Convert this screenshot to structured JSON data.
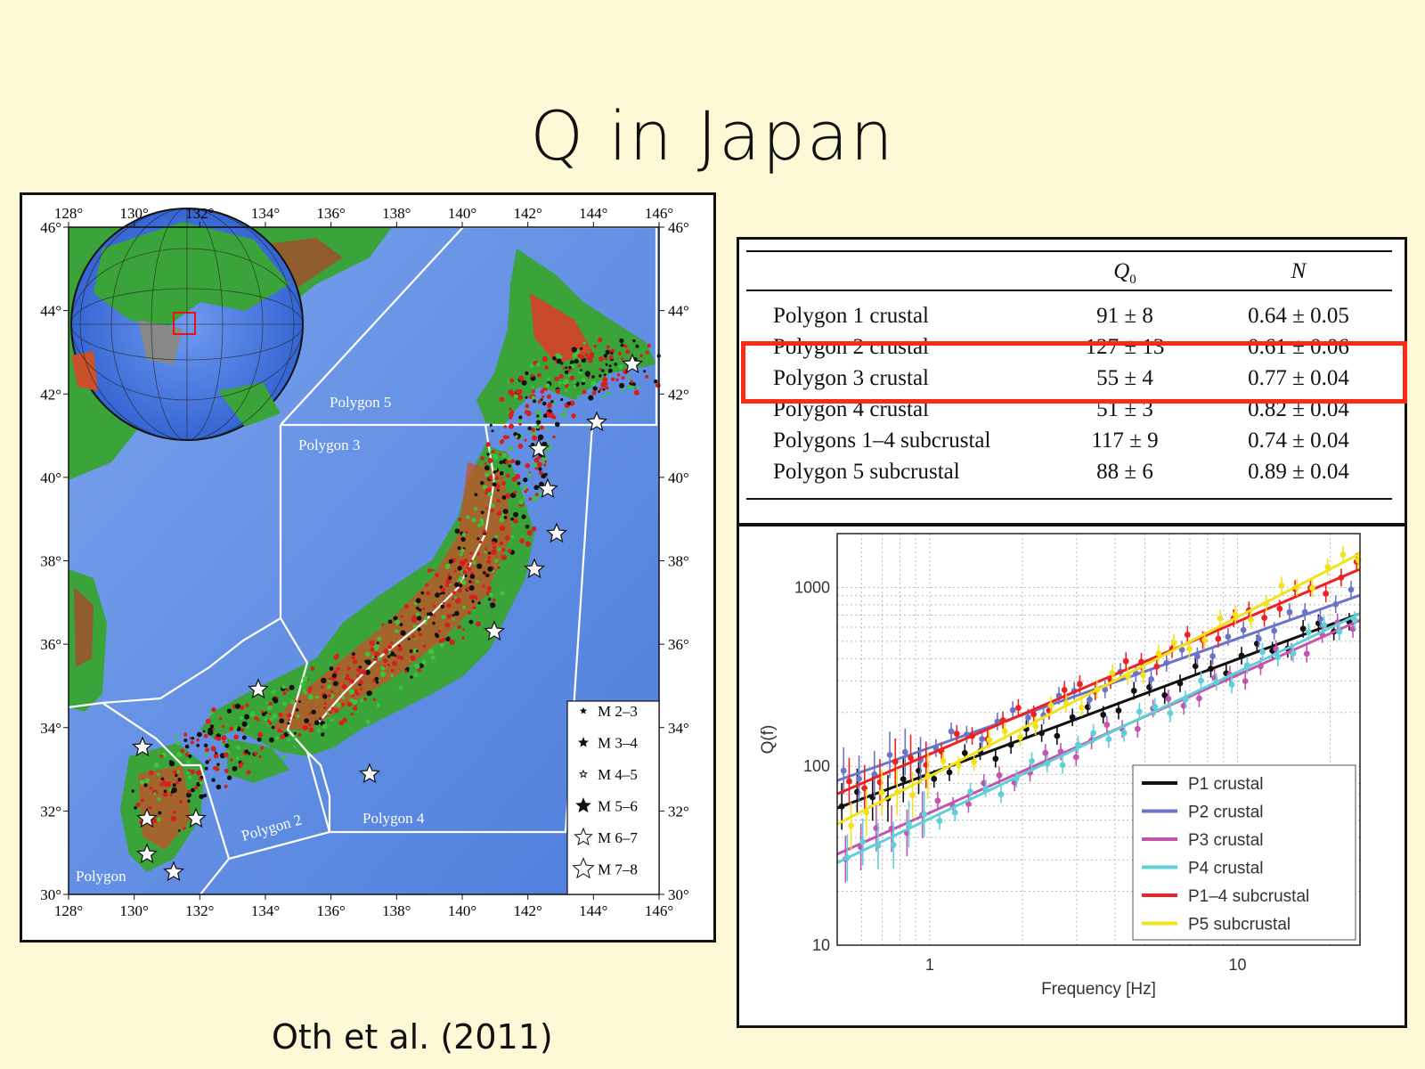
{
  "slide": {
    "title": "Q in Japan",
    "citation": "Oth et al. (2011)"
  },
  "map": {
    "lon_ticks": [
      "128°",
      "130°",
      "132°",
      "134°",
      "136°",
      "138°",
      "140°",
      "142°",
      "144°",
      "146°"
    ],
    "lat_ticks": [
      "46°",
      "44°",
      "42°",
      "40°",
      "38°",
      "36°",
      "34°",
      "32°",
      "30°"
    ],
    "polygon_labels": [
      "Polygon 5",
      "Polygon 3",
      "Polygon 2",
      "Polygon 4",
      "Polygon"
    ],
    "legend": [
      "M 2–3",
      "M 3–4",
      "M 4–5",
      "M 5–6",
      "M 6–7",
      "M 7–8"
    ],
    "colors": {
      "sea": "#5b86e0",
      "land_low": "#39a83a",
      "land_mid": "#e2c93a",
      "land_high": "#a93a22",
      "polygon_line": "#ffffff"
    }
  },
  "table": {
    "headers": [
      "",
      "Q0",
      "N"
    ],
    "rows": [
      {
        "label": "Polygon 1 crustal",
        "q0": "91 ± 8",
        "n": "0.64 ± 0.05"
      },
      {
        "label": "Polygon 2 crustal",
        "q0": "127 ± 13",
        "n": "0.61 ± 0.06"
      },
      {
        "label": "Polygon 3 crustal",
        "q0": "55 ± 4",
        "n": "0.77 ± 0.04"
      },
      {
        "label": "Polygon 4 crustal",
        "q0": "51 ± 3",
        "n": "0.82 ± 0.04"
      },
      {
        "label": "Polygons 1–4 subcrustal",
        "q0": "117 ± 9",
        "n": "0.74 ± 0.04"
      },
      {
        "label": "Polygon 5 subcrustal",
        "q0": "88 ± 6",
        "n": "0.89 ± 0.04"
      }
    ],
    "highlight_color": "#ff2a14"
  },
  "chart_data": {
    "type": "line",
    "xlabel": "Frequency [Hz]",
    "ylabel": "Q(f)",
    "xscale": "log",
    "yscale": "log",
    "xlim": [
      0.5,
      25
    ],
    "ylim": [
      10,
      2000
    ],
    "x_ticks": [
      "1",
      "10"
    ],
    "y_ticks": [
      "10",
      "100",
      "1000"
    ],
    "grid": true,
    "legend_position": "bottom-right",
    "series": [
      {
        "name": "P1 crustal",
        "color": "#111111",
        "q0": 91,
        "n": 0.64
      },
      {
        "name": "P2 crustal",
        "color": "#6b74c6",
        "q0": 127,
        "n": 0.61
      },
      {
        "name": "P3 crustal",
        "color": "#c455ae",
        "q0": 55,
        "n": 0.77
      },
      {
        "name": "P4 crustal",
        "color": "#5fcfd8",
        "q0": 51,
        "n": 0.82
      },
      {
        "name": "P1–4 subcrustal",
        "color": "#ee2222",
        "q0": 117,
        "n": 0.74
      },
      {
        "name": "P5 subcrustal",
        "color": "#f2e21a",
        "q0": 88,
        "n": 0.89
      }
    ]
  }
}
